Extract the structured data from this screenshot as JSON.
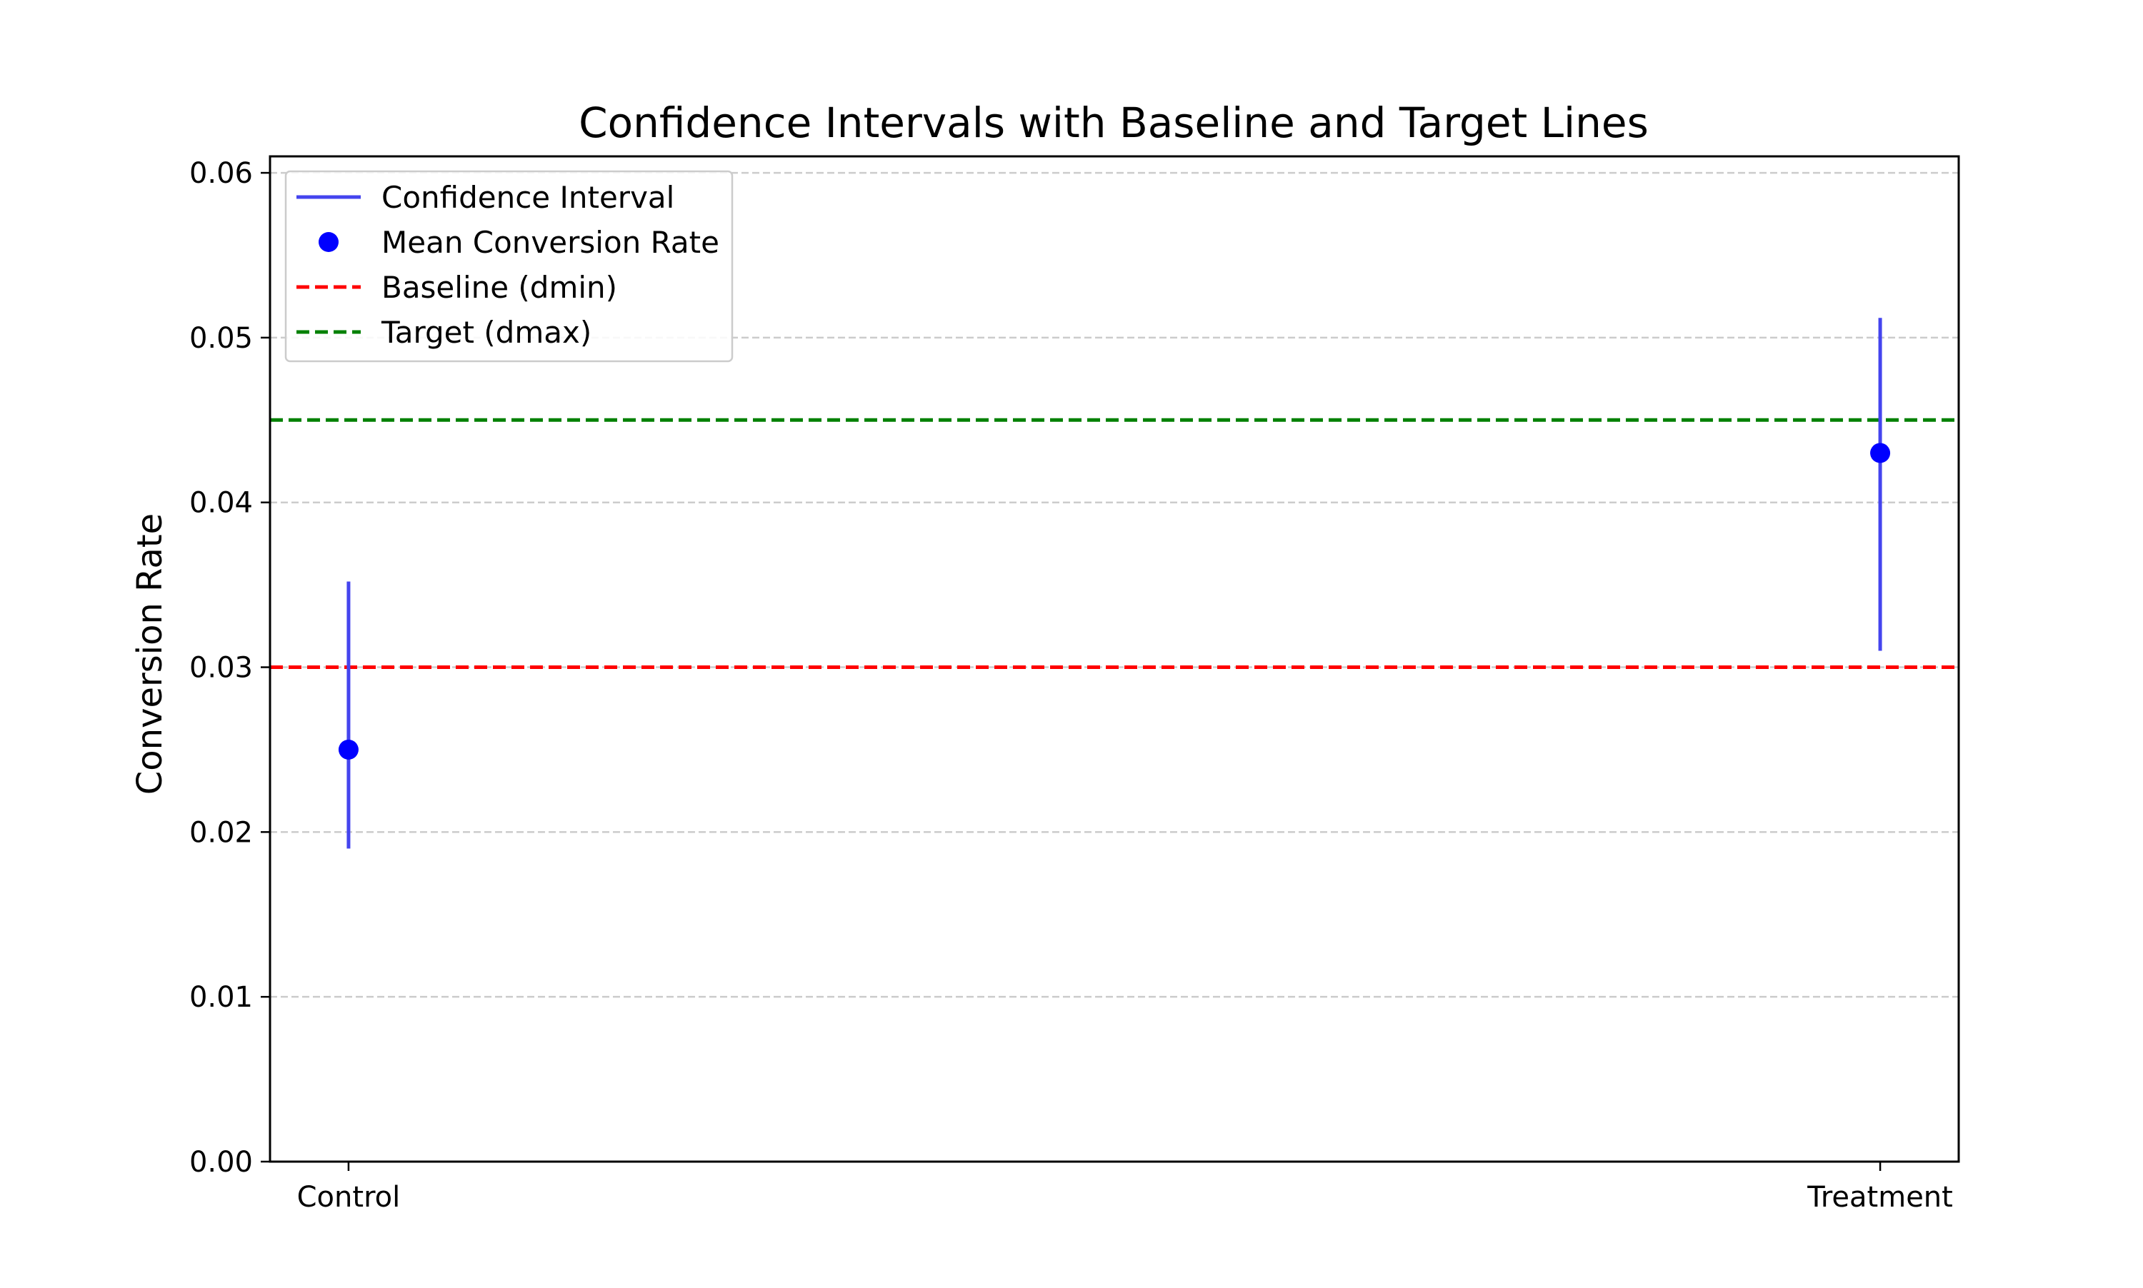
{
  "chart_data": {
    "type": "scatter",
    "title": "Confidence Intervals with Baseline and Target Lines",
    "xlabel": "",
    "ylabel": "Conversion Rate",
    "categories": [
      "Control",
      "Treatment"
    ],
    "means": [
      0.025,
      0.043
    ],
    "ci_lower": [
      0.019,
      0.031
    ],
    "ci_upper": [
      0.0352,
      0.0512
    ],
    "ylim": [
      0,
      0.061
    ],
    "yticks": [
      "0.00",
      "0.01",
      "0.02",
      "0.03",
      "0.04",
      "0.05",
      "0.06"
    ],
    "reference_lines": [
      {
        "name": "Baseline (dmin)",
        "value": 0.03,
        "color": "#ff0000",
        "style": "dashed"
      },
      {
        "name": "Target (dmax)",
        "value": 0.045,
        "color": "#008000",
        "style": "dashed"
      }
    ],
    "legend": {
      "placement": "top-left",
      "entries": [
        {
          "label": "Confidence Interval",
          "marker": "line",
          "color": "#4444ee"
        },
        {
          "label": "Mean Conversion Rate",
          "marker": "dot",
          "color": "#0000ff"
        },
        {
          "label": "Baseline (dmin)",
          "marker": "dashed-line",
          "color": "#ff0000"
        },
        {
          "label": "Target (dmax)",
          "marker": "dashed-line",
          "color": "#008000"
        }
      ]
    },
    "grid": {
      "y": true,
      "x": false,
      "style": "dashed",
      "color": "#cccccc"
    },
    "colors": {
      "ci": "#4444ee",
      "mean": "#0000ff"
    }
  }
}
